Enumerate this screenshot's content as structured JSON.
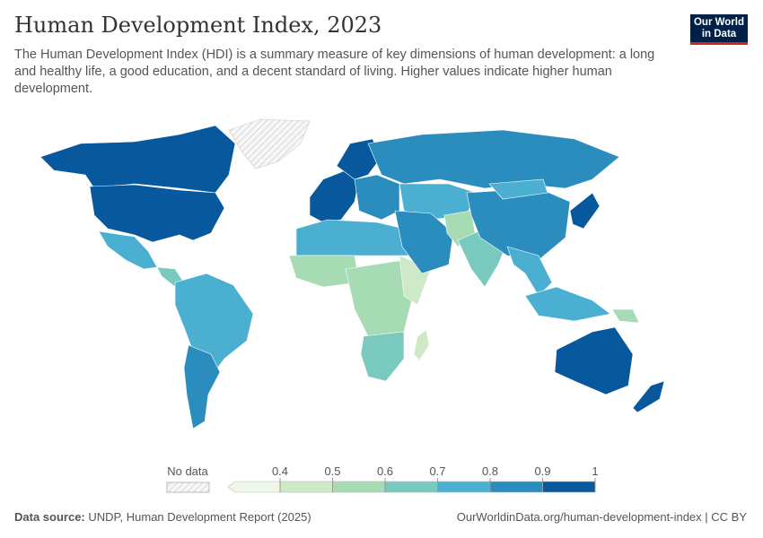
{
  "header": {
    "title": "Human Development Index, 2023",
    "subtitle": "The Human Development Index (HDI) is a summary measure of key dimensions of human development: a long and healthy life, a good education, and a decent standard of living. Higher values indicate higher human development."
  },
  "logo": {
    "line1": "Our World",
    "line2": "in Data"
  },
  "footer": {
    "source_label": "Data source:",
    "source": "UNDP, Human Development Report (2025)",
    "link": "OurWorldinData.org/human-development-index | CC BY"
  },
  "chart_data": {
    "type": "choropleth map",
    "title": "Human Development Index, 2023",
    "legend": {
      "no_data_label": "No data",
      "ticks": [
        "0.4",
        "0.5",
        "0.6",
        "0.7",
        "0.8",
        "0.9",
        "1"
      ],
      "bins": [
        {
          "range": "<0.4",
          "color": "#eef7e8"
        },
        {
          "range": "0.4-0.5",
          "color": "#cde9c5"
        },
        {
          "range": "0.5-0.6",
          "color": "#a6dbb3"
        },
        {
          "range": "0.6-0.7",
          "color": "#7ac9be"
        },
        {
          "range": "0.7-0.8",
          "color": "#4bafd2"
        },
        {
          "range": "0.8-0.9",
          "color": "#2b8cbe"
        },
        {
          "range": "0.9-1",
          "color": "#08589e"
        }
      ],
      "placement": "bottom-center"
    },
    "regions": [
      {
        "name": "Canada",
        "hdi": 0.94
      },
      {
        "name": "United States",
        "hdi": 0.93
      },
      {
        "name": "Greenland",
        "hdi": null
      },
      {
        "name": "Mexico",
        "hdi": 0.78
      },
      {
        "name": "Central America",
        "hdi": 0.7
      },
      {
        "name": "South America",
        "hdi": 0.77
      },
      {
        "name": "Argentina/Chile",
        "hdi": 0.86
      },
      {
        "name": "Western Europe",
        "hdi": 0.93
      },
      {
        "name": "Scandinavia",
        "hdi": 0.95
      },
      {
        "name": "Eastern Europe",
        "hdi": 0.84
      },
      {
        "name": "Russia",
        "hdi": 0.83
      },
      {
        "name": "Central Asia",
        "hdi": 0.78
      },
      {
        "name": "North Africa",
        "hdi": 0.74
      },
      {
        "name": "West Africa",
        "hdi": 0.5
      },
      {
        "name": "Central Africa",
        "hdi": 0.55
      },
      {
        "name": "East Africa",
        "hdi": 0.45
      },
      {
        "name": "Southern Africa",
        "hdi": 0.7
      },
      {
        "name": "Madagascar",
        "hdi": 0.49
      },
      {
        "name": "Middle East",
        "hdi": 0.86
      },
      {
        "name": "Afghanistan/Pakistan",
        "hdi": 0.5
      },
      {
        "name": "India",
        "hdi": 0.68
      },
      {
        "name": "China",
        "hdi": 0.8
      },
      {
        "name": "Mongolia",
        "hdi": 0.75
      },
      {
        "name": "Japan/Korea",
        "hdi": 0.93
      },
      {
        "name": "Southeast Asia",
        "hdi": 0.72
      },
      {
        "name": "Indonesia",
        "hdi": 0.73
      },
      {
        "name": "Papua New Guinea",
        "hdi": 0.58
      },
      {
        "name": "Australia",
        "hdi": 0.95
      },
      {
        "name": "New Zealand",
        "hdi": 0.94
      }
    ]
  }
}
